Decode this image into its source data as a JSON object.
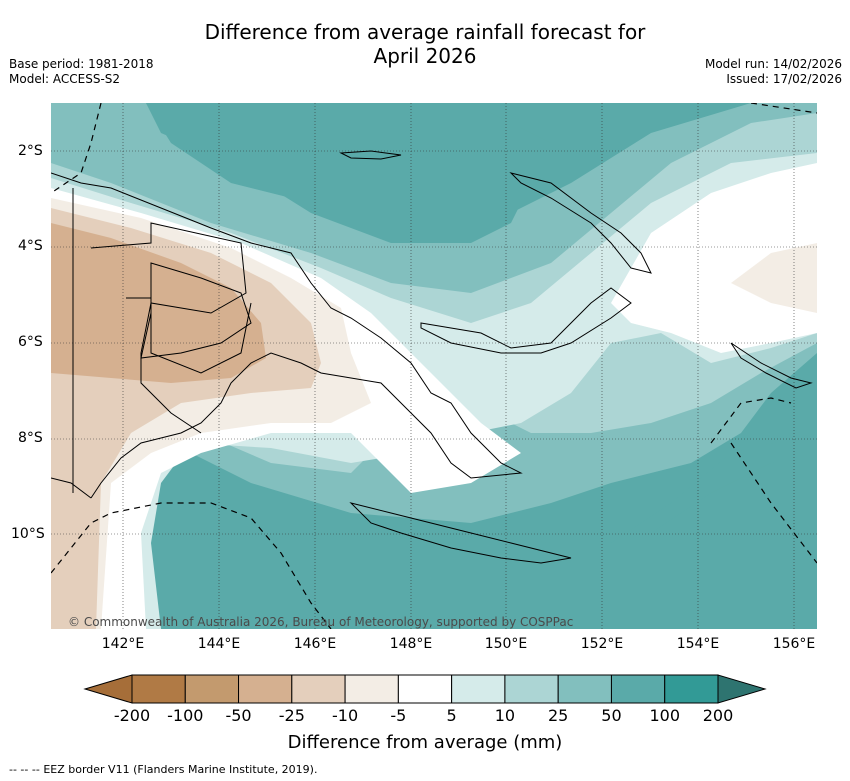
{
  "header": {
    "title_line1": "Difference from average rainfall forecast for",
    "title_line2": "April 2026",
    "base_period": "Base period: 1981-2018",
    "model": "Model: ACCESS-S2",
    "model_run": "Model run: 14/02/2026",
    "issued": "Issued: 17/02/2026"
  },
  "map": {
    "lat_labels": [
      "2°S",
      "4°S",
      "6°S",
      "8°S",
      "10°S"
    ],
    "lon_labels": [
      "142°E",
      "144°E",
      "146°E",
      "148°E",
      "150°E",
      "152°E",
      "154°E",
      "156°E"
    ],
    "copyright": "© Commonwealth of Australia 2026, Bureau of Meteorology, supported by COSPPac",
    "colors": {
      "ocean_base": "#5aaaa9",
      "deep": "#3a9a98",
      "mid": "#82bfbe",
      "light": "#acd5d4",
      "pale": "#d5ebea",
      "neutral": "#ffffff",
      "dry_pale": "#f3ede5",
      "dry_light": "#e4cfbc",
      "dry_mid": "#d5b090"
    }
  },
  "colorbar": {
    "label": "Difference from average (mm)",
    "ticks": [
      "-200",
      "-100",
      "-50",
      "-25",
      "-10",
      "-5",
      "5",
      "10",
      "25",
      "50",
      "100",
      "200"
    ],
    "colors": [
      "#a66e39",
      "#b07a45",
      "#c39a6e",
      "#d5b090",
      "#e4cfbc",
      "#f3ede5",
      "#ffffff",
      "#d5ebea",
      "#acd5d4",
      "#82bfbe",
      "#5aaaa9",
      "#329a96",
      "#2e7470"
    ]
  },
  "footer": {
    "legend_symbol": "-- -- --",
    "legend_text": "EEZ border V11 (Flanders Marine Institute, 2019)."
  }
}
